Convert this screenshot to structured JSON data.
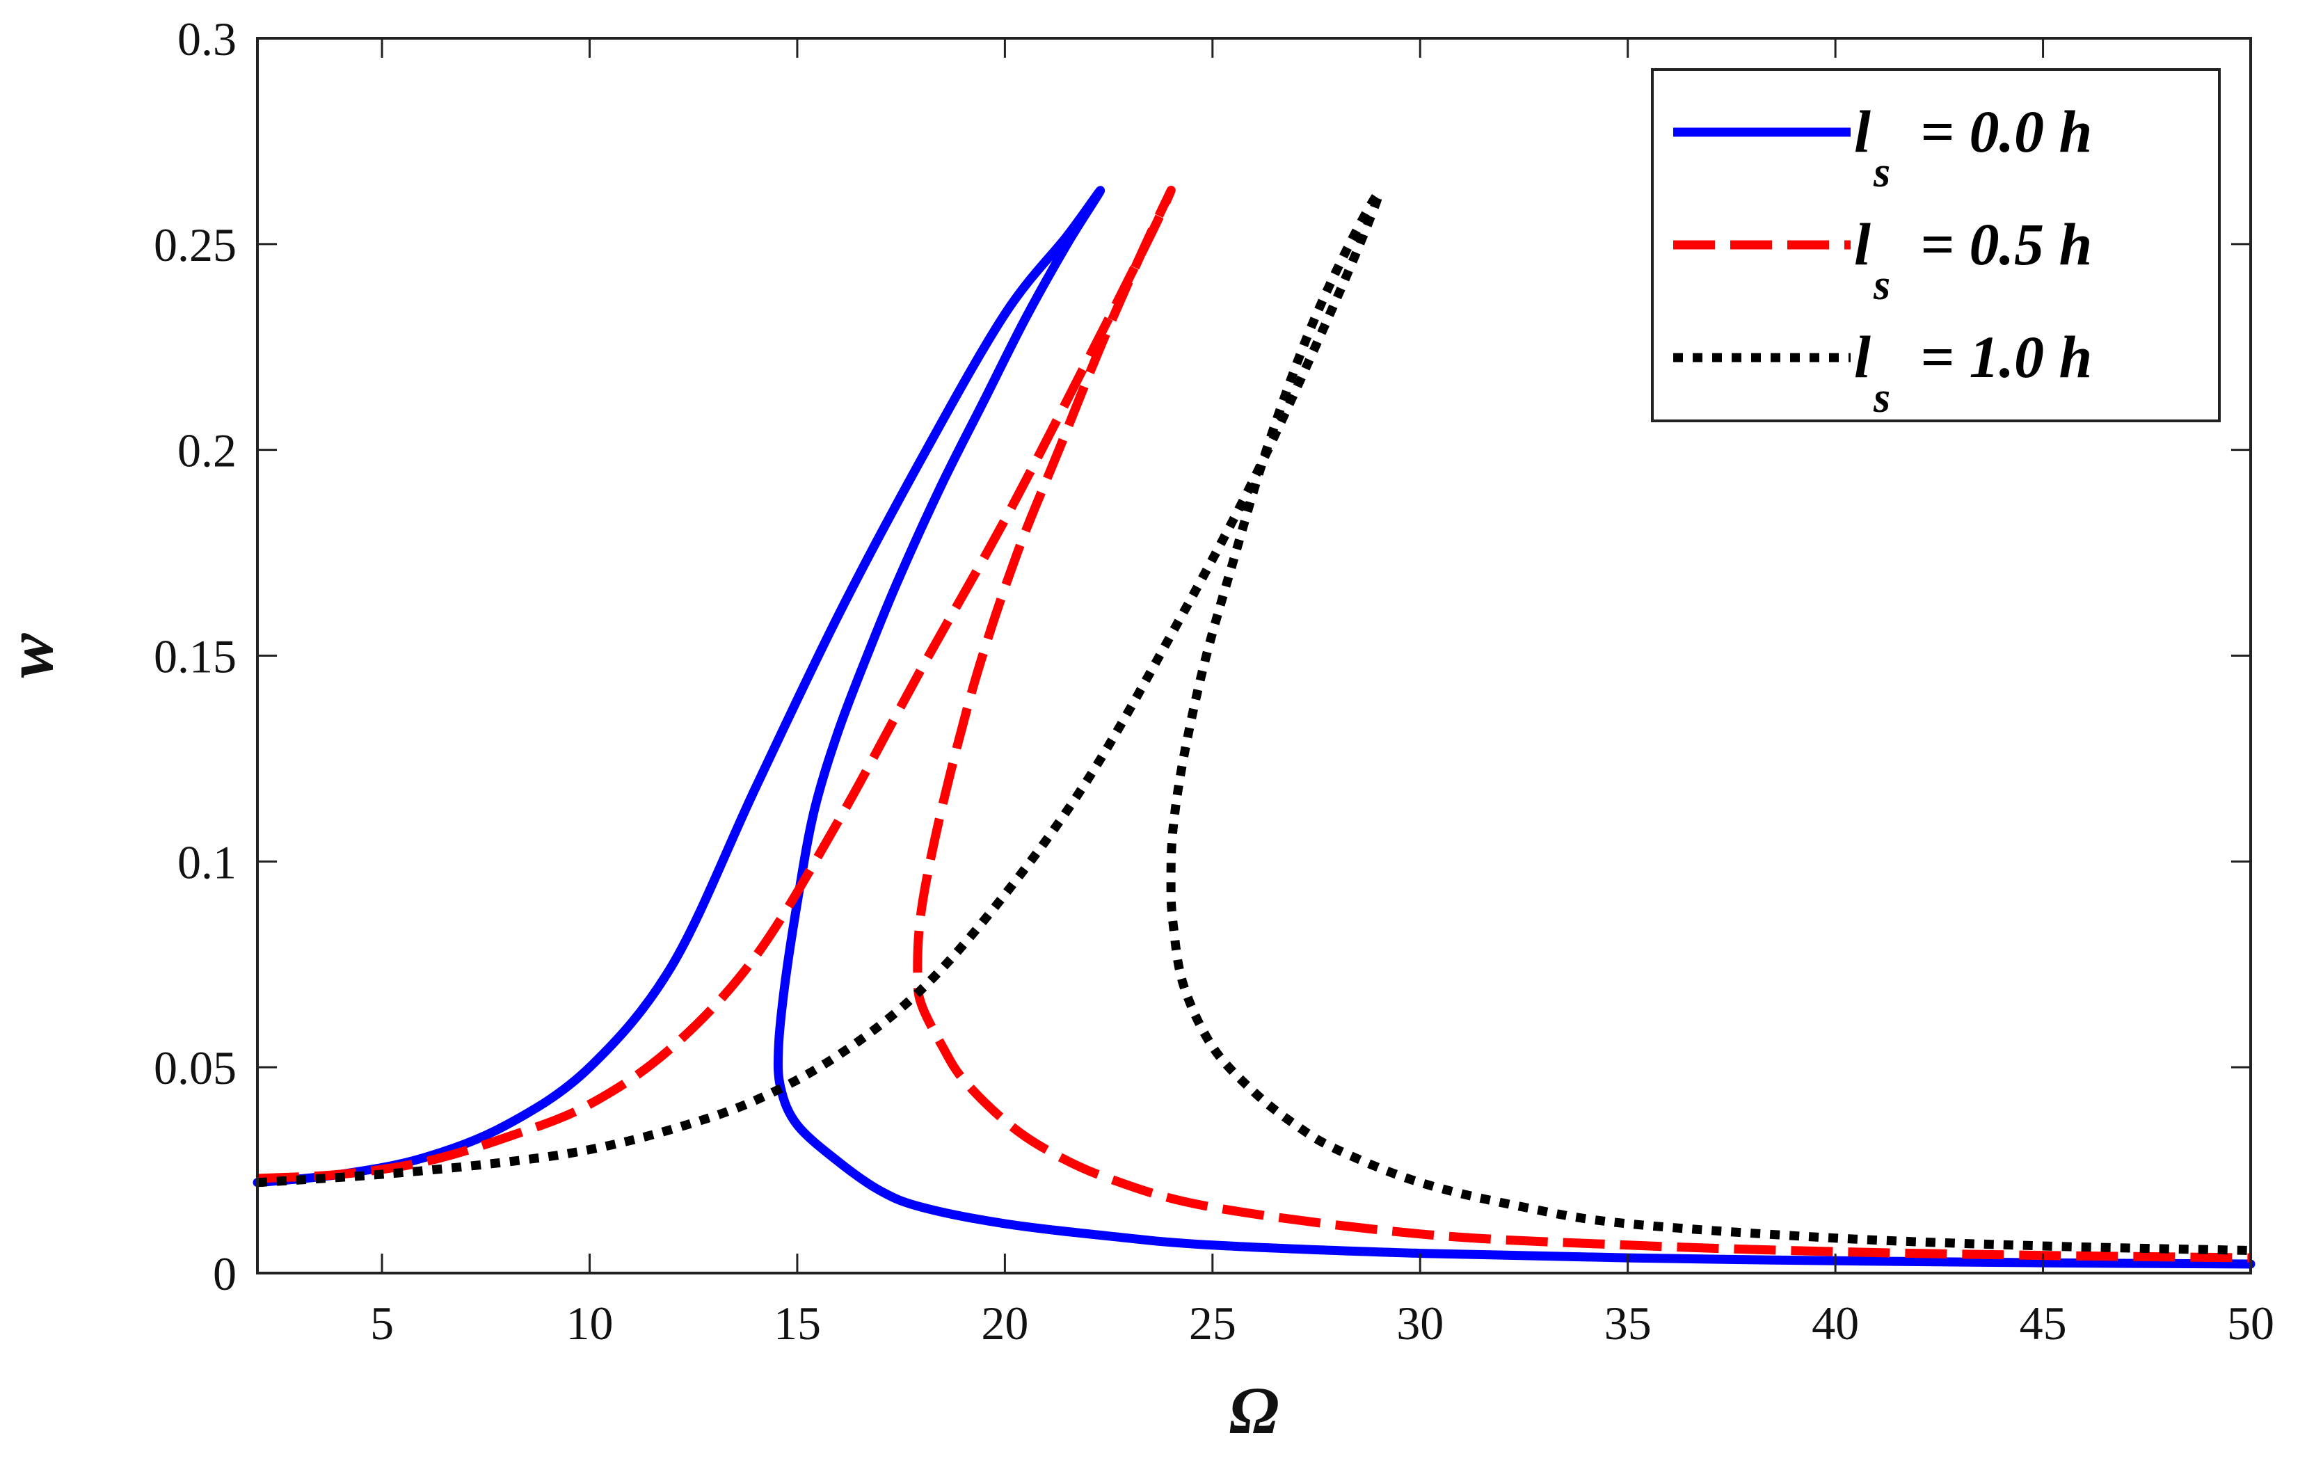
{
  "chart_data": {
    "type": "line",
    "title": "",
    "xlabel": "Ω",
    "ylabel": "w",
    "xlim": [
      2,
      50
    ],
    "ylim": [
      0,
      0.3
    ],
    "xticks": [
      5,
      10,
      15,
      20,
      25,
      30,
      35,
      40,
      45,
      50
    ],
    "yticks": [
      0,
      0.05,
      0.1,
      0.15,
      0.2,
      0.25,
      0.3
    ],
    "ytick_labels": [
      "0",
      "0.05",
      "0.1",
      "0.15",
      "0.2",
      "0.25",
      "0.3"
    ],
    "grid": false,
    "legend_position": "top-right",
    "series": [
      {
        "name": "l_s = 0.0 h",
        "legend_main": "l",
        "legend_sub": "s",
        "legend_tail": "= 0.0 h",
        "color": "#0000ff",
        "style": "solid",
        "x": [
          2,
          4,
          6,
          8,
          10,
          12,
          14,
          16,
          18,
          20,
          21.5,
          22.3,
          21.5,
          20.5,
          19.5,
          18.5,
          17.5,
          16.8,
          16,
          15.4,
          15,
          14.7,
          14.55,
          14.6,
          15,
          16,
          17,
          18,
          20,
          22.5,
          25,
          30,
          35,
          40,
          45,
          50
        ],
        "y": [
          0.022,
          0.024,
          0.028,
          0.036,
          0.05,
          0.075,
          0.118,
          0.16,
          0.198,
          0.233,
          0.252,
          0.263,
          0.25,
          0.232,
          0.212,
          0.192,
          0.17,
          0.153,
          0.132,
          0.112,
          0.09,
          0.07,
          0.055,
          0.045,
          0.036,
          0.027,
          0.02,
          0.016,
          0.012,
          0.009,
          0.0068,
          0.0048,
          0.0037,
          0.003,
          0.0025,
          0.0022
        ]
      },
      {
        "name": "l_s = 0.5 h",
        "legend_main": "l",
        "legend_sub": "s",
        "legend_tail": "= 0.5 h",
        "color": "#ff0000",
        "style": "dashed",
        "x": [
          2,
          4,
          6,
          8,
          10,
          12,
          14,
          16,
          18,
          20,
          22,
          23.5,
          24,
          23.3,
          22.3,
          21.3,
          20.3,
          19.4,
          18.7,
          18.2,
          17.95,
          17.9,
          18,
          18.5,
          19,
          20,
          21,
          22.5,
          25,
          30,
          35,
          40,
          45,
          50
        ],
        "y": [
          0.023,
          0.024,
          0.027,
          0.033,
          0.041,
          0.055,
          0.077,
          0.11,
          0.147,
          0.183,
          0.222,
          0.252,
          0.263,
          0.248,
          0.225,
          0.2,
          0.175,
          0.148,
          0.122,
          0.1,
          0.085,
          0.072,
          0.065,
          0.055,
          0.047,
          0.037,
          0.03,
          0.023,
          0.016,
          0.0095,
          0.0068,
          0.0052,
          0.0043,
          0.0037
        ]
      },
      {
        "name": "l_s = 1.0 h",
        "legend_main": "l",
        "legend_sub": "s",
        "legend_tail": "= 1.0 h",
        "color": "#000000",
        "style": "dotted",
        "x": [
          2,
          5,
          8,
          10,
          12,
          14,
          16,
          18,
          20,
          22,
          24,
          26,
          28,
          29,
          28.3,
          27.3,
          26.3,
          25.5,
          24.8,
          24.3,
          24.05,
          24,
          24.05,
          24.3,
          25,
          26,
          27,
          28,
          30,
          32.5,
          35,
          40,
          45,
          50
        ],
        "y": [
          0.022,
          0.024,
          0.027,
          0.03,
          0.035,
          0.042,
          0.053,
          0.069,
          0.092,
          0.12,
          0.155,
          0.193,
          0.237,
          0.262,
          0.25,
          0.228,
          0.2,
          0.173,
          0.148,
          0.125,
          0.108,
          0.095,
          0.085,
          0.07,
          0.055,
          0.044,
          0.036,
          0.03,
          0.022,
          0.016,
          0.012,
          0.0085,
          0.0066,
          0.0055
        ]
      }
    ]
  }
}
